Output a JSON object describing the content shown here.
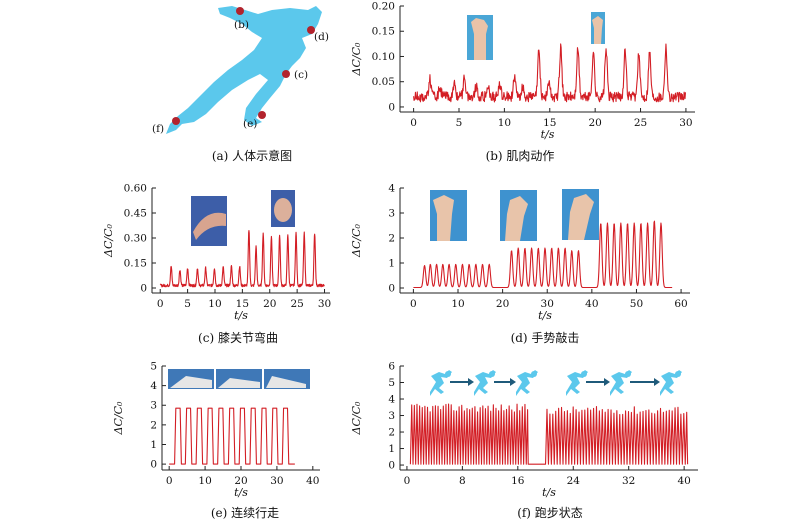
{
  "colors": {
    "line": "#d31e25",
    "figure": "#5bc8ec",
    "marker": "#b2232d",
    "axis": "#222222"
  },
  "panel_a": {
    "caption": "(a) 人体示意图",
    "points": [
      "(b)",
      "(d)",
      "(c)",
      "(e)",
      "(f)"
    ]
  },
  "chart_data": [
    {
      "id": "b",
      "type": "line",
      "caption": "(b) 肌肉动作",
      "ylabel": "ΔC/C₀",
      "xlabel": "t/s",
      "xlim": [
        -1.5,
        31
      ],
      "ylim": [
        -0.01,
        0.2
      ],
      "xticks": [
        0,
        5,
        10,
        15,
        20,
        25,
        30
      ],
      "yticks": [
        0,
        0.05,
        0.1,
        0.15,
        0.2
      ],
      "ytick_labels": [
        "0",
        "0.05",
        "0.10",
        "0.15",
        "0.20"
      ],
      "baseline": 0.02,
      "noise": 0.01,
      "peaks": [
        [
          1.8,
          0.055
        ],
        [
          2.9,
          0.04
        ],
        [
          4.5,
          0.045
        ],
        [
          5.6,
          0.06
        ],
        [
          6.9,
          0.04
        ],
        [
          8.2,
          0.04
        ],
        [
          9.5,
          0.045
        ],
        [
          11.1,
          0.06
        ],
        [
          12.0,
          0.04
        ],
        [
          13.8,
          0.11
        ],
        [
          14.9,
          0.05
        ],
        [
          16.2,
          0.115
        ],
        [
          18.1,
          0.115
        ],
        [
          19.8,
          0.11
        ],
        [
          21.2,
          0.115
        ],
        [
          23.3,
          0.11
        ],
        [
          24.8,
          0.105
        ],
        [
          26.0,
          0.11
        ],
        [
          27.8,
          0.12
        ]
      ],
      "range": [
        0,
        30
      ]
    },
    {
      "id": "c",
      "type": "line",
      "caption": "(c) 膝关节弯曲",
      "ylabel": "ΔC/C₀",
      "xlabel": "t/s",
      "xlim": [
        -1.5,
        31
      ],
      "ylim": [
        -0.03,
        0.6
      ],
      "xticks": [
        0,
        5,
        10,
        15,
        20,
        25,
        30
      ],
      "yticks": [
        0,
        0.15,
        0.3,
        0.45,
        0.6
      ],
      "ytick_labels": [
        "0",
        "0.15",
        "0.30",
        "0.45",
        "0.60"
      ],
      "baseline": 0.015,
      "noise": 0.008,
      "peaks": [
        [
          2.0,
          0.13
        ],
        [
          3.6,
          0.11
        ],
        [
          5.0,
          0.12
        ],
        [
          6.8,
          0.12
        ],
        [
          8.3,
          0.12
        ],
        [
          9.9,
          0.12
        ],
        [
          11.5,
          0.125
        ],
        [
          13.0,
          0.13
        ],
        [
          14.5,
          0.13
        ],
        [
          16.2,
          0.35
        ],
        [
          17.5,
          0.25
        ],
        [
          18.8,
          0.33
        ],
        [
          20.3,
          0.31
        ],
        [
          21.8,
          0.32
        ],
        [
          23.3,
          0.32
        ],
        [
          24.8,
          0.33
        ],
        [
          26.3,
          0.33
        ],
        [
          28.2,
          0.33
        ]
      ],
      "range": [
        0,
        30
      ]
    },
    {
      "id": "d",
      "type": "line",
      "caption": "(d) 手势敲击",
      "ylabel": "ΔC/C₀",
      "xlabel": "t/s",
      "xlim": [
        -3,
        62
      ],
      "ylim": [
        -0.2,
        4
      ],
      "xticks": [
        0,
        10,
        20,
        30,
        40,
        50,
        60
      ],
      "yticks": [
        0,
        1,
        2,
        3,
        4
      ],
      "ytick_labels": [
        "0",
        "1",
        "2",
        "3",
        "4"
      ],
      "baseline": 0.02,
      "noise": 0.0,
      "peaks": [
        [
          2.5,
          0.9
        ],
        [
          3.8,
          0.95
        ],
        [
          5.2,
          0.95
        ],
        [
          6.6,
          0.95
        ],
        [
          8.0,
          0.95
        ],
        [
          9.5,
          0.95
        ],
        [
          11.0,
          0.95
        ],
        [
          12.5,
          0.95
        ],
        [
          14.0,
          0.95
        ],
        [
          15.5,
          0.95
        ],
        [
          17.0,
          0.95
        ],
        [
          22.0,
          1.5
        ],
        [
          23.5,
          1.6
        ],
        [
          25.0,
          1.6
        ],
        [
          26.5,
          1.6
        ],
        [
          28.0,
          1.6
        ],
        [
          29.5,
          1.6
        ],
        [
          31.0,
          1.6
        ],
        [
          32.5,
          1.6
        ],
        [
          34.0,
          1.6
        ],
        [
          35.5,
          1.5
        ],
        [
          37.0,
          1.5
        ],
        [
          42.0,
          2.6
        ],
        [
          43.5,
          2.6
        ],
        [
          45.0,
          2.6
        ],
        [
          46.5,
          2.6
        ],
        [
          48.0,
          2.6
        ],
        [
          49.5,
          2.6
        ],
        [
          51.0,
          2.6
        ],
        [
          52.5,
          2.6
        ],
        [
          54.0,
          2.7
        ],
        [
          55.5,
          2.6
        ]
      ],
      "range": [
        0,
        58
      ]
    },
    {
      "id": "e",
      "type": "line",
      "caption": "(e) 连续行走",
      "ylabel": "ΔC/C₀",
      "xlabel": "t/s",
      "xlim": [
        -2,
        42
      ],
      "ylim": [
        -0.3,
        5
      ],
      "xticks": [
        0,
        10,
        20,
        30,
        40
      ],
      "yticks": [
        0,
        1,
        2,
        3,
        4,
        5
      ],
      "ytick_labels": [
        "0",
        "1",
        "2",
        "3",
        "4",
        "5"
      ],
      "plateaus": [
        [
          1.5,
          3.4,
          2.85
        ],
        [
          4.5,
          6.3,
          2.85
        ],
        [
          7.5,
          9.3,
          2.85
        ],
        [
          10.5,
          12.3,
          2.85
        ],
        [
          13.5,
          15.3,
          2.85
        ],
        [
          16.5,
          18.3,
          2.85
        ],
        [
          19.5,
          21.3,
          2.85
        ],
        [
          22.5,
          24.3,
          2.85
        ],
        [
          25.5,
          27.3,
          2.85
        ],
        [
          28.5,
          30.3,
          2.85
        ],
        [
          31.5,
          33.3,
          2.85
        ]
      ],
      "range": [
        0,
        35
      ]
    },
    {
      "id": "f",
      "type": "line",
      "caption": "(f) 跑步状态",
      "ylabel": "ΔC/C₀",
      "xlabel": "t/s",
      "xlim": [
        -1,
        42
      ],
      "ylim": [
        -0.3,
        6
      ],
      "xticks": [
        0,
        8,
        16,
        24,
        32,
        40
      ],
      "yticks": [
        0,
        1,
        2,
        3,
        4,
        5,
        6
      ],
      "ytick_labels": [
        "0",
        "1",
        "2",
        "3",
        "4",
        "5",
        "6"
      ],
      "segments": [
        [
          0.5,
          17.5,
          0.38,
          3.45
        ],
        [
          20,
          40.5,
          0.42,
          3.3
        ]
      ],
      "range": [
        0,
        40.5
      ]
    }
  ]
}
